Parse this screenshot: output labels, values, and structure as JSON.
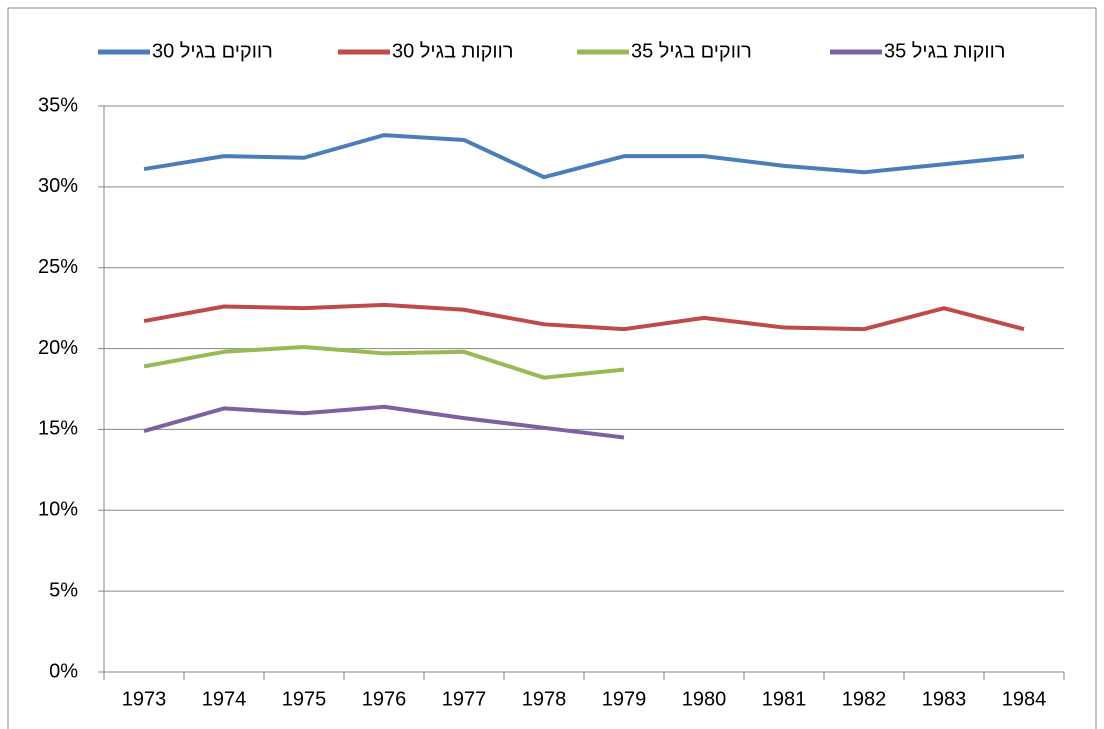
{
  "chart_data": {
    "type": "line",
    "categories": [
      "1973",
      "1974",
      "1975",
      "1976",
      "1977",
      "1978",
      "1979",
      "1980",
      "1981",
      "1982",
      "1983",
      "1984"
    ],
    "series": [
      {
        "name": "רווקים בגיל 30",
        "color": "#4a7ebb",
        "values": [
          31.1,
          31.9,
          31.8,
          33.2,
          32.9,
          30.6,
          31.9,
          31.9,
          31.3,
          30.9,
          31.4,
          31.9
        ]
      },
      {
        "name": "רווקות בגיל 30",
        "color": "#be4b48",
        "values": [
          21.7,
          22.6,
          22.5,
          22.7,
          22.4,
          21.5,
          21.2,
          21.9,
          21.3,
          21.2,
          22.5,
          21.2
        ]
      },
      {
        "name": "רווקים בגיל 35",
        "color": "#98b954",
        "values": [
          18.9,
          19.8,
          20.1,
          19.7,
          19.8,
          18.2,
          18.7,
          null,
          null,
          null,
          null,
          null
        ]
      },
      {
        "name": "רווקות בגיל 35",
        "color": "#7d60a0",
        "values": [
          14.9,
          16.3,
          16.0,
          16.4,
          15.7,
          15.1,
          14.5,
          null,
          null,
          null,
          null,
          null
        ]
      }
    ],
    "ylim": [
      0,
      35
    ],
    "yticks": [
      {
        "value": 0,
        "label": "0%"
      },
      {
        "value": 5,
        "label": "5%"
      },
      {
        "value": 10,
        "label": "10%"
      },
      {
        "value": 15,
        "label": "15%"
      },
      {
        "value": 20,
        "label": "20%"
      },
      {
        "value": 25,
        "label": "25%"
      },
      {
        "value": 30,
        "label": "30%"
      },
      {
        "value": 35,
        "label": "35%"
      }
    ],
    "grid": true,
    "legend": "top"
  }
}
